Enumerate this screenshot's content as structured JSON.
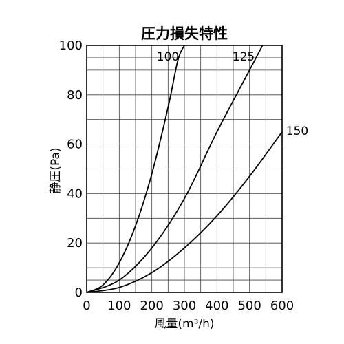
{
  "chart_data": {
    "type": "line",
    "title": "圧力損失特性",
    "xlabel": "風量(m³/h)",
    "ylabel": "静圧(Pa)",
    "xlim": [
      0,
      600
    ],
    "ylim": [
      0,
      100
    ],
    "x_ticks": [
      0,
      100,
      200,
      300,
      400,
      500,
      600
    ],
    "y_ticks": [
      0,
      20,
      40,
      60,
      80,
      100
    ],
    "x_tick_labels": [
      "0",
      "100",
      "200",
      "300",
      "400",
      "500",
      "600"
    ],
    "y_tick_labels": [
      "0",
      "20",
      "40",
      "60",
      "80",
      "100"
    ],
    "grid": true,
    "series": [
      {
        "name": "100",
        "x": [
          0,
          50,
          100,
          150,
          200,
          250,
          280,
          300
        ],
        "y": [
          0,
          3,
          12,
          27,
          48,
          75,
          94,
          100
        ]
      },
      {
        "name": "125",
        "x": [
          0,
          100,
          200,
          300,
          400,
          500,
          540
        ],
        "y": [
          0,
          5,
          18,
          38,
          65,
          90,
          100
        ]
      },
      {
        "name": "150",
        "x": [
          0,
          100,
          200,
          300,
          400,
          500,
          600
        ],
        "y": [
          0,
          2,
          8,
          18,
          31,
          47,
          65
        ]
      }
    ]
  }
}
